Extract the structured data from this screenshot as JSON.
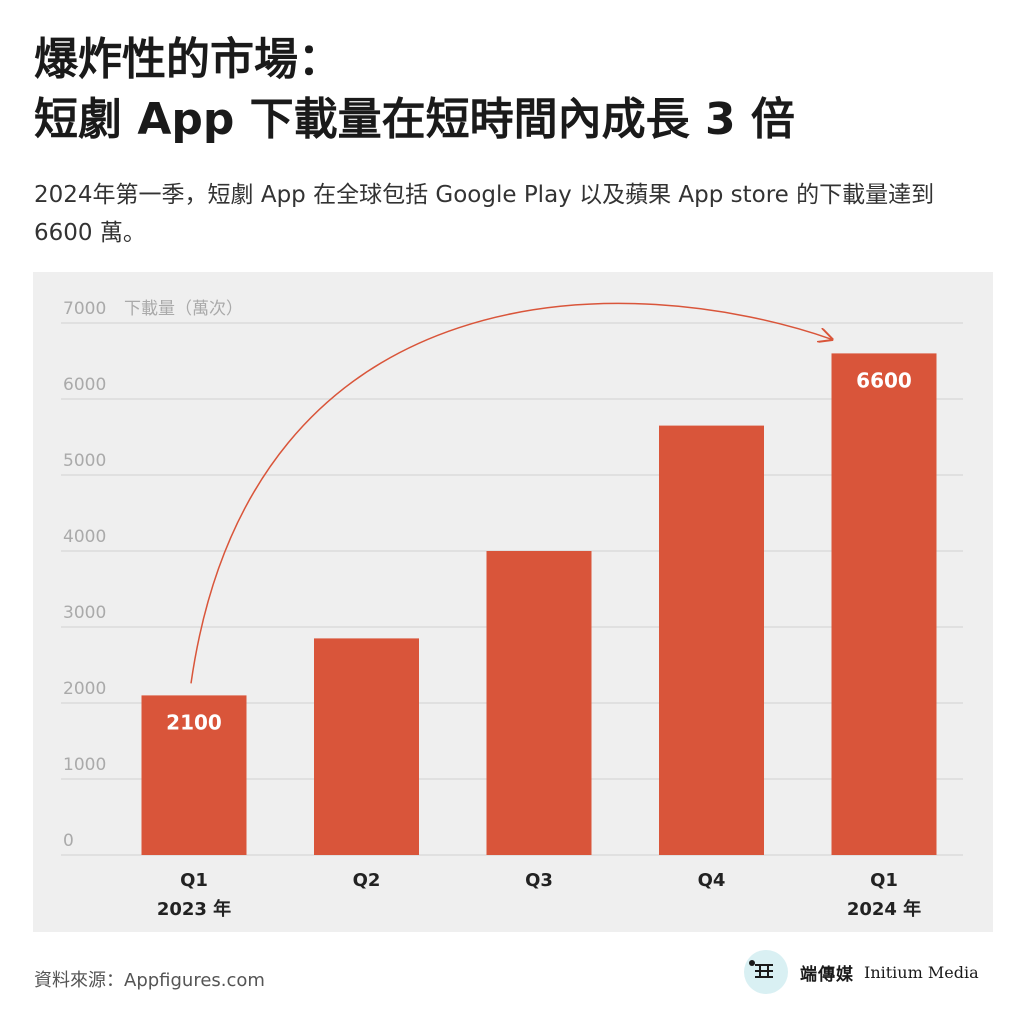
{
  "header": {
    "title_line1": "爆炸性的市場：",
    "title_line2": "短劇 App 下載量在短時間內成長 3 倍",
    "subtitle": "2024年第一季，短劇 App 在全球包括 Google Play 以及蘋果 App store 的下載量達到 6600 萬。"
  },
  "chart_data": {
    "type": "bar",
    "categories": [
      "Q1",
      "Q2",
      "Q3",
      "Q4",
      "Q1"
    ],
    "category_sublabels": [
      "2023 年",
      "",
      "",
      "",
      "2024 年"
    ],
    "values": [
      2100,
      2850,
      4000,
      5650,
      6600
    ],
    "data_labels": [
      "2100",
      "",
      "",
      "",
      "6600"
    ],
    "ylabel": "下載量（萬次）",
    "ylim": [
      0,
      7000
    ],
    "yticks": [
      "0",
      "1000",
      "2000",
      "3000",
      "4000",
      "5000",
      "6000",
      "7000"
    ],
    "grid": true,
    "bar_color": "#d9553a",
    "annotation": "curved arrow from first bar to last bar",
    "annotation_color": "#d9553a"
  },
  "footer": {
    "source": "資料來源：Appfigures.com",
    "logo_zh": "端傳媒",
    "logo_en": "Initium Media"
  },
  "colors": {
    "panel_bg": "#efefef",
    "grid": "#d8d8d8",
    "tick_text": "#aaaaaa",
    "bar_label_text": "#ffffff"
  }
}
